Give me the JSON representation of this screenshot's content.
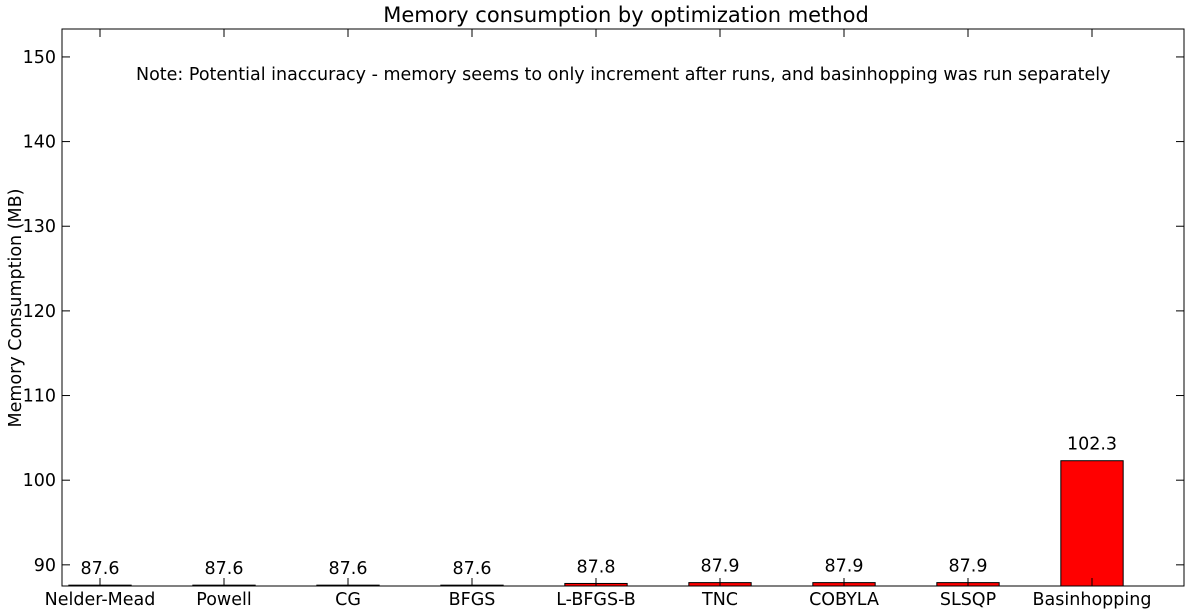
{
  "chart_data": {
    "type": "bar",
    "title": "Memory consumption by optimization method",
    "xlabel": "",
    "ylabel": "Memory Consumption (MB)",
    "annotation": "Note: Potential inaccuracy - memory seems to only increment after runs, and basinhopping was run separately",
    "categories": [
      "Nelder-Mead",
      "Powell",
      "CG",
      "BFGS",
      "L-BFGS-B",
      "TNC",
      "COBYLA",
      "SLSQP",
      "Basinhopping"
    ],
    "values": [
      87.6,
      87.6,
      87.6,
      87.6,
      87.8,
      87.9,
      87.9,
      87.9,
      102.3
    ],
    "value_labels": [
      "87.6",
      "87.6",
      "87.6",
      "87.6",
      "87.8",
      "87.9",
      "87.9",
      "87.9",
      "102.3"
    ],
    "ylim": [
      87.5,
      153.3
    ],
    "yticks": [
      90,
      100,
      110,
      120,
      130,
      140,
      150
    ],
    "ytick_labels": [
      "90",
      "100",
      "110",
      "120",
      "130",
      "140",
      "150"
    ],
    "grid": false,
    "legend": "none",
    "bar_color": "#ff0000"
  }
}
